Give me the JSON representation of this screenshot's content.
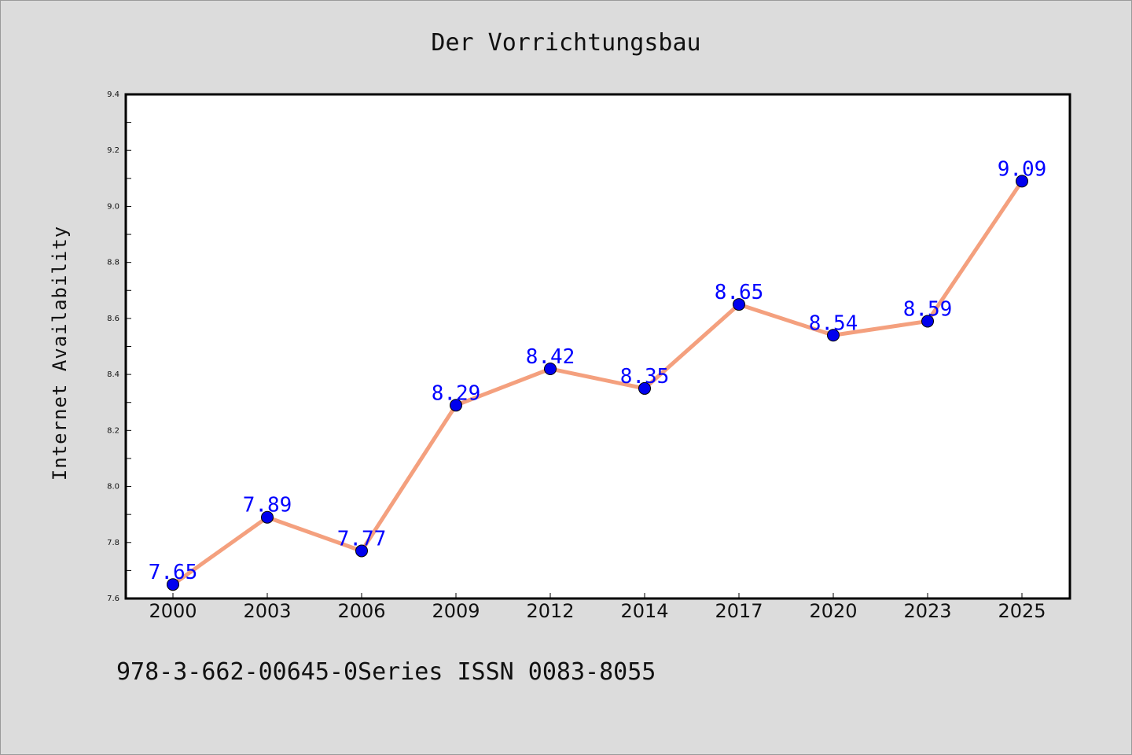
{
  "chart_data": {
    "type": "line",
    "title": "Der Vorrichtungsbau",
    "xlabel": "",
    "ylabel": "Internet Availability",
    "footer": "978-3-662-00645-0Series ISSN 0083-8055",
    "categories": [
      "2000",
      "2003",
      "2006",
      "2009",
      "2012",
      "2014",
      "2017",
      "2020",
      "2023",
      "2025"
    ],
    "series": [
      {
        "values": [
          7.65,
          7.89,
          7.77,
          8.29,
          8.42,
          8.35,
          8.65,
          8.54,
          8.59,
          9.09
        ],
        "line_color": "#f4a07e",
        "marker_color": "#0000ee",
        "label_color": "#0000ff"
      }
    ],
    "ylim": [
      7.6,
      9.4
    ],
    "yticks": [
      "7.6",
      "7.8",
      "8.0",
      "8.2",
      "8.4",
      "8.6",
      "8.8",
      "9.0",
      "9.2",
      "9.4"
    ],
    "data_labels": [
      "7.65",
      "7.89",
      "7.77",
      "8.29",
      "8.42",
      "8.35",
      "8.65",
      "8.54",
      "8.59",
      "9.09"
    ],
    "grid": false,
    "legend": "none",
    "background_color": "#dcdcdc",
    "plot_background_color": "#ffffff"
  }
}
